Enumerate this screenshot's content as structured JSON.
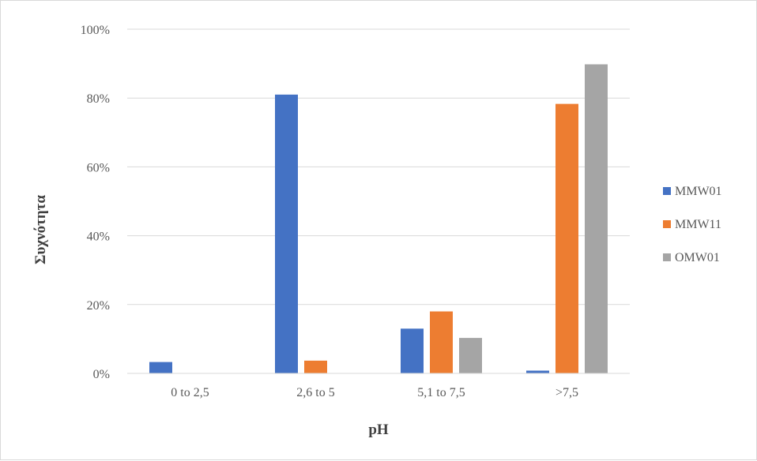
{
  "chart_data": {
    "type": "bar",
    "title": "",
    "xlabel": "pH",
    "ylabel": "Συχνότητα",
    "categories": [
      "0 to 2,5",
      "2,6 to 5",
      "5,1 to 7,5",
      ">7,5"
    ],
    "series": [
      {
        "name": "MMW01",
        "color": "#4472C4",
        "values": [
          0.033,
          0.81,
          0.13,
          0.008
        ]
      },
      {
        "name": "MMW11",
        "color": "#ED7D31",
        "values": [
          0.0,
          0.037,
          0.18,
          0.783
        ]
      },
      {
        "name": "OMW01",
        "color": "#A5A5A5",
        "values": [
          0.0,
          0.0,
          0.103,
          0.898
        ]
      }
    ],
    "ylim": [
      0,
      1
    ],
    "yticks": [
      "0%",
      "20%",
      "40%",
      "60%",
      "80%",
      "100%"
    ],
    "ytick_values": [
      0,
      0.2,
      0.4,
      0.6,
      0.8,
      1.0
    ],
    "grid": true,
    "legend_position": "right"
  }
}
